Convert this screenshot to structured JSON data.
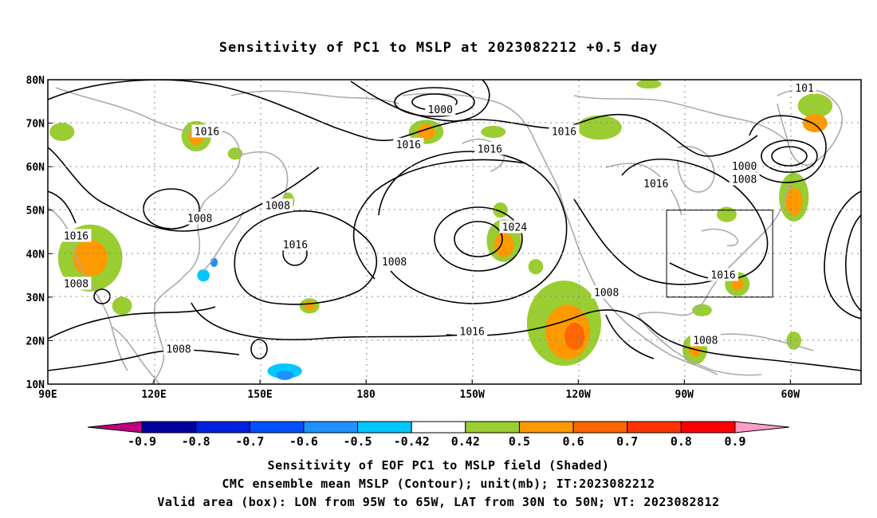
{
  "title": "Sensitivity of PC1 to MSLP at 2023082212 +0.5 day",
  "lon_ticks": [
    "90E",
    "120E",
    "150E",
    "180",
    "150W",
    "120W",
    "90W",
    "60W"
  ],
  "lat_ticks": [
    "10N",
    "20N",
    "30N",
    "40N",
    "50N",
    "60N",
    "70N",
    "80N"
  ],
  "contour_labels": [
    {
      "text": "1000",
      "lon": -159,
      "lat": 73
    },
    {
      "text": "1016",
      "lon": -168,
      "lat": 65
    },
    {
      "text": "1016",
      "lon": -145,
      "lat": 64
    },
    {
      "text": "1016",
      "lon": 135,
      "lat": 68
    },
    {
      "text": "1016",
      "lon": -124,
      "lat": 68
    },
    {
      "text": "1016",
      "lon": -98,
      "lat": 56
    },
    {
      "text": "1000",
      "lon": -73,
      "lat": 60
    },
    {
      "text": "1008",
      "lon": -73,
      "lat": 57
    },
    {
      "text": "101",
      "lon": -56,
      "lat": 78
    },
    {
      "text": "1008",
      "lon": 133,
      "lat": 48
    },
    {
      "text": "1008",
      "lon": 155,
      "lat": 51
    },
    {
      "text": "1016",
      "lon": 98,
      "lat": 44
    },
    {
      "text": "1016",
      "lon": 160,
      "lat": 42
    },
    {
      "text": "1024",
      "lon": -138,
      "lat": 46
    },
    {
      "text": "1008",
      "lon": -172,
      "lat": 38
    },
    {
      "text": "1008",
      "lon": 98,
      "lat": 33
    },
    {
      "text": "1016",
      "lon": -150,
      "lat": 22
    },
    {
      "text": "1008",
      "lon": -112,
      "lat": 31
    },
    {
      "text": "1016",
      "lon": -79,
      "lat": 35
    },
    {
      "text": "1008",
      "lon": -84,
      "lat": 20
    },
    {
      "text": "1008",
      "lon": 127,
      "lat": 18
    }
  ],
  "valid_box": {
    "lon_from": -95,
    "lon_to": -65,
    "lat_from": 30,
    "lat_to": 50
  },
  "colorbar": {
    "labels": [
      "-0.9",
      "-0.8",
      "-0.7",
      "-0.6",
      "-0.5",
      "-0.42",
      "0.42",
      "0.5",
      "0.6",
      "0.7",
      "0.8",
      "0.9"
    ],
    "colors": [
      "#0000a0",
      "#0020e0",
      "#0050ff",
      "#1e90ff",
      "#00c8ff",
      "#ffffff",
      "#9acd32",
      "#ff9900",
      "#ff6600",
      "#ff3300",
      "#ff0000"
    ],
    "low_end_color": "#c0007f",
    "high_end_color": "#ff9ec8"
  },
  "captions": {
    "line1": "Sensitivity of EOF PC1 to MSLP field (Shaded)",
    "line2": "CMC ensemble mean MSLP (Contour); unit(mb); IT:2023082212",
    "line3": "Valid area (box): LON from 95W to 65W, LAT from 30N to 50N; VT: 2023082812"
  },
  "shaded_areas": [
    {
      "lon": -124,
      "lat": 24,
      "rx": 30,
      "ry": 28,
      "color": "#9acd32"
    },
    {
      "lon": -123,
      "lat": 22,
      "rx": 18,
      "ry": 18,
      "color": "#ff9900"
    },
    {
      "lon": -121,
      "lat": 21,
      "rx": 8,
      "ry": 9,
      "color": "#ff6600"
    },
    {
      "lon": -141,
      "lat": 43,
      "rx": 14,
      "ry": 14,
      "color": "#9acd32"
    },
    {
      "lon": -141,
      "lat": 42,
      "rx": 8,
      "ry": 8,
      "color": "#ff9900"
    },
    {
      "lon": 102,
      "lat": 39,
      "rx": 26,
      "ry": 22,
      "color": "#9acd32"
    },
    {
      "lon": 102,
      "lat": 39,
      "rx": 14,
      "ry": 12,
      "color": "#ff9900"
    },
    {
      "lon": 132,
      "lat": 67,
      "rx": 12,
      "ry": 10,
      "color": "#9acd32"
    },
    {
      "lon": 132,
      "lat": 67,
      "rx": 6,
      "ry": 6,
      "color": "#ff9900"
    },
    {
      "lon": -163,
      "lat": 68,
      "rx": 14,
      "ry": 8,
      "color": "#9acd32"
    },
    {
      "lon": -163,
      "lat": 68,
      "rx": 7,
      "ry": 5,
      "color": "#ff9900"
    },
    {
      "lon": -114,
      "lat": 69,
      "rx": 18,
      "ry": 8,
      "color": "#9acd32"
    },
    {
      "lon": -59,
      "lat": 53,
      "rx": 12,
      "ry": 16,
      "color": "#9acd32"
    },
    {
      "lon": -59,
      "lat": 52,
      "rx": 7,
      "ry": 9,
      "color": "#ff9900"
    },
    {
      "lon": -87,
      "lat": 18,
      "rx": 10,
      "ry": 10,
      "color": "#9acd32"
    },
    {
      "lon": -87,
      "lat": 18,
      "rx": 5,
      "ry": 5,
      "color": "#ff9900"
    },
    {
      "lon": -75,
      "lat": 33,
      "rx": 10,
      "ry": 8,
      "color": "#9acd32"
    },
    {
      "lon": -75,
      "lat": 33,
      "rx": 5,
      "ry": 4,
      "color": "#ff9900"
    },
    {
      "lon": -59,
      "lat": 20,
      "rx": 6,
      "ry": 6,
      "color": "#9acd32"
    },
    {
      "lon": -53,
      "lat": 74,
      "rx": 14,
      "ry": 8,
      "color": "#9acd32"
    },
    {
      "lon": -53,
      "lat": 70,
      "rx": 10,
      "ry": 6,
      "color": "#ff9900"
    },
    {
      "lon": 164,
      "lat": 28,
      "rx": 8,
      "ry": 5,
      "color": "#9acd32"
    },
    {
      "lon": 164,
      "lat": 28,
      "rx": 4,
      "ry": 3,
      "color": "#ff9900"
    },
    {
      "lon": 158,
      "lat": 52,
      "rx": 5,
      "ry": 6,
      "color": "#9acd32"
    },
    {
      "lon": 158,
      "lat": 51,
      "rx": 3,
      "ry": 3,
      "color": "#ff9900"
    },
    {
      "lon": 111,
      "lat": 28,
      "rx": 8,
      "ry": 6,
      "color": "#9acd32"
    },
    {
      "lon": 94,
      "lat": 68,
      "rx": 10,
      "ry": 6,
      "color": "#9acd32"
    },
    {
      "lon": -132,
      "lat": 37,
      "rx": 6,
      "ry": 5,
      "color": "#9acd32"
    },
    {
      "lon": -100,
      "lat": 79,
      "rx": 10,
      "ry": 3,
      "color": "#9acd32"
    },
    {
      "lon": -144,
      "lat": 68,
      "rx": 10,
      "ry": 4,
      "color": "#9acd32"
    },
    {
      "lon": 143,
      "lat": 63,
      "rx": 6,
      "ry": 4,
      "color": "#9acd32"
    },
    {
      "lon": -78,
      "lat": 49,
      "rx": 8,
      "ry": 5,
      "color": "#9acd32"
    },
    {
      "lon": -142,
      "lat": 50,
      "rx": 6,
      "ry": 5,
      "color": "#9acd32"
    },
    {
      "lon": -85,
      "lat": 27,
      "rx": 8,
      "ry": 4,
      "color": "#9acd32"
    },
    {
      "lon": 157,
      "lat": 13,
      "rx": 14,
      "ry": 5,
      "color": "#00c8ff"
    },
    {
      "lon": 157,
      "lat": 12,
      "rx": 7,
      "ry": 3,
      "color": "#1e90ff"
    },
    {
      "lon": 137,
      "lat": 38,
      "rx": 3,
      "ry": 3,
      "color": "#1e90ff"
    },
    {
      "lon": 134,
      "lat": 35,
      "rx": 5,
      "ry": 4,
      "color": "#00c8ff"
    }
  ]
}
